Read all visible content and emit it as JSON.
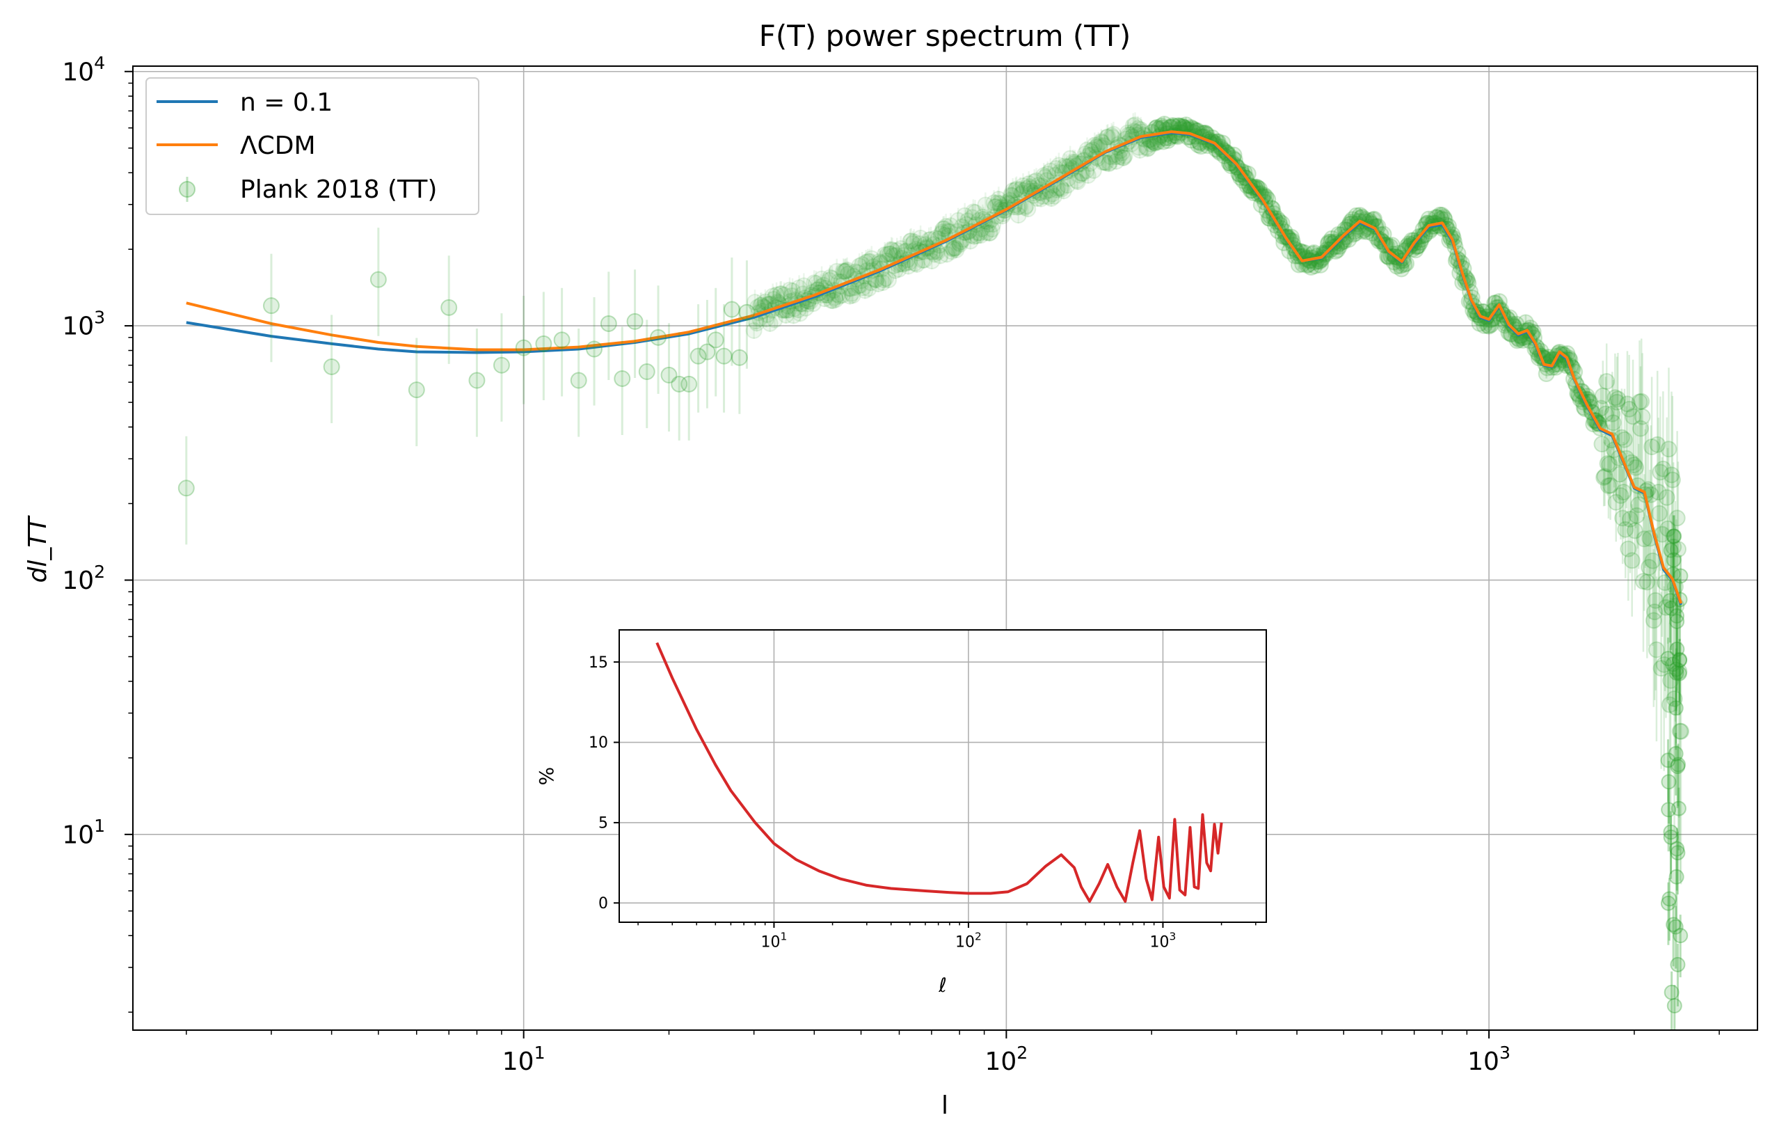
{
  "chart_data": [
    {
      "type": "line",
      "title": "F(T) power spectrum (TT)",
      "xlabel": "l",
      "ylabel": "dl_TT",
      "xscale": "log",
      "yscale": "log",
      "xlim": [
        1.55,
        3600
      ],
      "ylim": [
        1.7,
        10500
      ],
      "grid": true,
      "legend_position": "top-left",
      "x_ticks": [
        10,
        100,
        1000
      ],
      "x_tick_labels": [
        "10",
        "10",
        "10"
      ],
      "x_tick_exponents": [
        "1",
        "2",
        "3"
      ],
      "y_ticks": [
        10,
        100,
        1000,
        10000
      ],
      "y_tick_labels": [
        "10",
        "10",
        "10",
        "10"
      ],
      "y_tick_exponents": [
        "1",
        "2",
        "3",
        "4"
      ],
      "series": [
        {
          "name": "n = 0.1",
          "color": "#1f77b4",
          "x": [
            2,
            3,
            4,
            5,
            6,
            8,
            10,
            13,
            17,
            22,
            30,
            40,
            55,
            75,
            100,
            130,
            160,
            190,
            220,
            240,
            270,
            300,
            340,
            380,
            410,
            450,
            500,
            540,
            580,
            620,
            660,
            700,
            750,
            800,
            840,
            880,
            920,
            960,
            1000,
            1050,
            1100,
            1150,
            1200,
            1250,
            1300,
            1350,
            1400,
            1450,
            1500,
            1600,
            1700,
            1800,
            1900,
            2000,
            2100,
            2200,
            2300,
            2400,
            2500
          ],
          "y": [
            1030,
            910,
            850,
            810,
            790,
            785,
            790,
            810,
            860,
            930,
            1080,
            1300,
            1650,
            2150,
            2850,
            3800,
            4800,
            5500,
            5750,
            5650,
            5200,
            4300,
            3100,
            2200,
            1800,
            1850,
            2250,
            2550,
            2400,
            1950,
            1780,
            2100,
            2450,
            2500,
            2150,
            1600,
            1250,
            1080,
            1050,
            1200,
            1000,
            920,
            950,
            840,
            700,
            690,
            780,
            740,
            620,
            480,
            390,
            370,
            290,
            230,
            220,
            150,
            110,
            100,
            80
          ]
        },
        {
          "name": "ΛCDM",
          "color": "#ff7f0e",
          "x": [
            2,
            3,
            4,
            5,
            6,
            8,
            10,
            13,
            17,
            22,
            30,
            40,
            55,
            75,
            100,
            130,
            160,
            190,
            220,
            240,
            270,
            300,
            340,
            380,
            410,
            450,
            500,
            540,
            580,
            620,
            660,
            700,
            750,
            800,
            840,
            880,
            920,
            960,
            1000,
            1050,
            1100,
            1150,
            1200,
            1250,
            1300,
            1350,
            1400,
            1450,
            1500,
            1600,
            1700,
            1800,
            1900,
            2000,
            2100,
            2200,
            2300,
            2400,
            2500
          ],
          "y": [
            1230,
            1020,
            920,
            860,
            830,
            805,
            805,
            825,
            870,
            945,
            1100,
            1320,
            1670,
            2170,
            2870,
            3830,
            4830,
            5550,
            5800,
            5700,
            5230,
            4320,
            3120,
            2210,
            1800,
            1860,
            2270,
            2580,
            2420,
            1960,
            1790,
            2120,
            2480,
            2540,
            2180,
            1620,
            1260,
            1090,
            1060,
            1210,
            1010,
            930,
            960,
            850,
            705,
            695,
            790,
            750,
            625,
            485,
            395,
            375,
            293,
            232,
            222,
            152,
            112,
            101,
            81
          ]
        },
        {
          "name": "Plank 2018 (TT)",
          "color": "#2ca02c",
          "marker": "circle",
          "x": [
            2,
            3,
            4,
            5,
            6,
            7,
            8,
            9,
            10,
            11,
            12,
            13,
            14,
            15,
            16,
            17,
            18,
            19,
            20,
            21,
            22,
            23,
            24,
            25,
            26,
            27,
            28,
            29
          ],
          "y": [
            230,
            1200,
            690,
            1520,
            560,
            1180,
            610,
            700,
            820,
            850,
            880,
            610,
            810,
            1020,
            620,
            1040,
            660,
            900,
            640,
            590,
            590,
            760,
            790,
            880,
            760,
            1160,
            750,
            1130
          ]
        }
      ]
    },
    {
      "type": "line",
      "title": "",
      "xlabel": "ℓ",
      "ylabel": "%",
      "xscale": "log",
      "yscale": "linear",
      "xlim": [
        1.6,
        3400
      ],
      "ylim": [
        -1.2,
        17
      ],
      "grid": true,
      "x_ticks": [
        10,
        100,
        1000
      ],
      "x_tick_labels": [
        "10",
        "10",
        "10"
      ],
      "x_tick_exponents": [
        "1",
        "2",
        "3"
      ],
      "y_ticks": [
        0,
        5,
        10,
        15
      ],
      "y_tick_labels": [
        "0",
        "5",
        "10",
        "15"
      ],
      "series": [
        {
          "color": "#d62728",
          "x": [
            2.5,
            3,
            4,
            5,
            6,
            8,
            10,
            13,
            17,
            22,
            30,
            40,
            60,
            80,
            100,
            130,
            160,
            200,
            250,
            300,
            350,
            380,
            420,
            470,
            520,
            580,
            640,
            700,
            760,
            820,
            880,
            950,
            1010,
            1080,
            1150,
            1220,
            1300,
            1380,
            1450,
            1520,
            1600,
            1680,
            1760,
            1840,
            1920,
            2000
          ],
          "y": [
            16.2,
            14.0,
            10.8,
            8.6,
            7.0,
            5.0,
            3.7,
            2.7,
            2.0,
            1.5,
            1.1,
            0.9,
            0.75,
            0.65,
            0.6,
            0.6,
            0.7,
            1.2,
            2.3,
            3.0,
            2.2,
            1.0,
            0.1,
            1.2,
            2.4,
            1.0,
            0.1,
            2.5,
            4.5,
            1.5,
            0.2,
            4.1,
            1.0,
            0.3,
            5.2,
            0.8,
            0.5,
            4.7,
            1.0,
            0.9,
            5.5,
            2.5,
            2.0,
            4.9,
            3.1,
            5.0
          ]
        }
      ]
    }
  ]
}
